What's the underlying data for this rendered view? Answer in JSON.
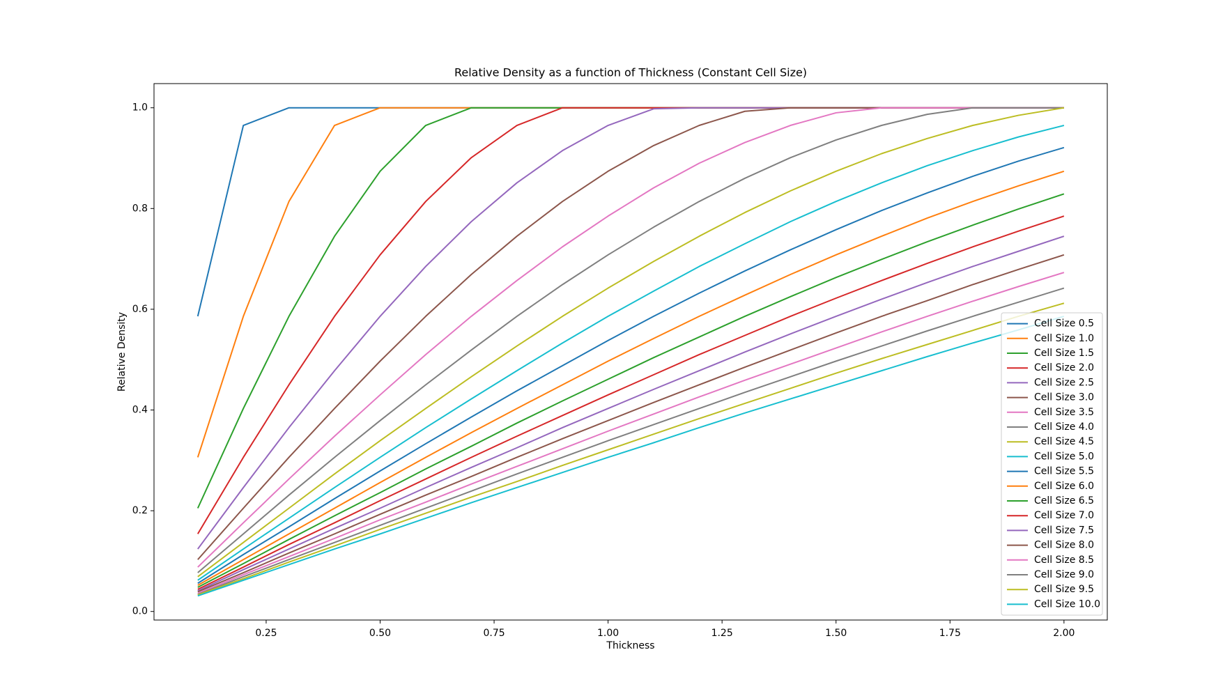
{
  "chart_data": {
    "type": "line",
    "title": "Relative Density as a function of Thickness (Constant Cell Size)",
    "x_label": "Thickness",
    "y_label": "Relative Density",
    "x": [
      0.1,
      0.2,
      0.3,
      0.4,
      0.5,
      0.6,
      0.7,
      0.8,
      0.9,
      1.0,
      1.1,
      1.2,
      1.3,
      1.4,
      1.5,
      1.6,
      1.7,
      1.8,
      1.9,
      2.0
    ],
    "xlim": [
      0.004,
      2.095
    ],
    "ylim": [
      -0.017,
      1.048
    ],
    "xticks": [
      0.25,
      {
        "value": 0.5,
        "label": "0.50"
      },
      0.75,
      {
        "value": 1.0,
        "label": "1.00"
      },
      1.25,
      {
        "value": 1.5,
        "label": "1.50"
      },
      1.75,
      {
        "value": 2.0,
        "label": "2.00"
      }
    ],
    "yticks": [
      {
        "value": 0,
        "label": "0.0"
      },
      0.2,
      0.4,
      0.6,
      0.8,
      {
        "value": 1.0,
        "label": "1.0"
      }
    ],
    "grid": false,
    "legend": "lower right",
    "series": [
      {
        "name": "Cell Size 0.5",
        "color": "#1f77b4",
        "values": [
          0.586,
          0.965,
          1,
          1,
          1,
          1,
          1,
          1,
          1,
          1,
          1,
          1,
          1,
          1,
          1,
          1,
          1,
          1,
          1,
          1
        ]
      },
      {
        "name": "Cell Size 1.0",
        "color": "#ff7f0e",
        "values": [
          0.306,
          0.586,
          0.814,
          0.965,
          1,
          1,
          1,
          1,
          1,
          1,
          1,
          1,
          1,
          1,
          1,
          1,
          1,
          1,
          1,
          1
        ]
      },
      {
        "name": "Cell Size 1.5",
        "color": "#2ca02c",
        "values": [
          0.205,
          0.403,
          0.586,
          0.745,
          0.874,
          0.965,
          1,
          1,
          1,
          1,
          1,
          1,
          1,
          1,
          1,
          1,
          1,
          1,
          1,
          1
        ]
      },
      {
        "name": "Cell Size 2.0",
        "color": "#d62728",
        "values": [
          0.154,
          0.306,
          0.45,
          0.586,
          0.708,
          0.814,
          0.901,
          0.965,
          1,
          1,
          1,
          1,
          1,
          1,
          1,
          1,
          1,
          1,
          1,
          1
        ]
      },
      {
        "name": "Cell Size 2.5",
        "color": "#9467bd",
        "values": [
          0.124,
          0.246,
          0.365,
          0.478,
          0.586,
          0.685,
          0.774,
          0.851,
          0.915,
          0.965,
          0.998,
          1,
          1,
          1,
          1,
          1,
          1,
          1,
          1,
          1
        ]
      },
      {
        "name": "Cell Size 3.0",
        "color": "#8c564b",
        "values": [
          0.103,
          0.205,
          0.306,
          0.403,
          0.497,
          0.586,
          0.669,
          0.745,
          0.814,
          0.874,
          0.925,
          0.965,
          0.993,
          1,
          1,
          1,
          1,
          1,
          1,
          1
        ]
      },
      {
        "name": "Cell Size 3.5",
        "color": "#e377c2",
        "values": [
          0.088,
          0.176,
          0.263,
          0.348,
          0.43,
          0.51,
          0.586,
          0.657,
          0.724,
          0.785,
          0.841,
          0.89,
          0.931,
          0.965,
          0.99,
          1,
          1,
          1,
          1,
          1
        ]
      },
      {
        "name": "Cell Size 4.0",
        "color": "#7f7f7f",
        "values": [
          0.077,
          0.154,
          0.231,
          0.306,
          0.379,
          0.45,
          0.519,
          0.586,
          0.649,
          0.708,
          0.763,
          0.814,
          0.86,
          0.901,
          0.936,
          0.965,
          0.987,
          1,
          1,
          1
        ]
      },
      {
        "name": "Cell Size 4.5",
        "color": "#bcbd22",
        "values": [
          0.069,
          0.137,
          0.205,
          0.273,
          0.339,
          0.403,
          0.466,
          0.527,
          0.586,
          0.642,
          0.695,
          0.745,
          0.792,
          0.835,
          0.874,
          0.909,
          0.939,
          0.965,
          0.985,
          1
        ]
      },
      {
        "name": "Cell Size 5.0",
        "color": "#17becf",
        "values": [
          0.062,
          0.124,
          0.185,
          0.246,
          0.306,
          0.365,
          0.422,
          0.478,
          0.533,
          0.586,
          0.636,
          0.685,
          0.73,
          0.774,
          0.814,
          0.851,
          0.885,
          0.915,
          0.942,
          0.965
        ]
      },
      {
        "name": "Cell Size 5.5",
        "color": "#1f77b4",
        "values": [
          0.056,
          0.113,
          0.168,
          0.224,
          0.279,
          0.333,
          0.386,
          0.438,
          0.488,
          0.538,
          0.586,
          0.632,
          0.676,
          0.718,
          0.758,
          0.796,
          0.831,
          0.864,
          0.894,
          0.921
        ]
      },
      {
        "name": "Cell Size 6.0",
        "color": "#ff7f0e",
        "values": [
          0.052,
          0.103,
          0.154,
          0.205,
          0.256,
          0.306,
          0.355,
          0.403,
          0.45,
          0.497,
          0.542,
          0.586,
          0.628,
          0.669,
          0.708,
          0.745,
          0.781,
          0.814,
          0.845,
          0.874
        ]
      },
      {
        "name": "Cell Size 6.5",
        "color": "#2ca02c",
        "values": [
          0.048,
          0.095,
          0.143,
          0.19,
          0.236,
          0.283,
          0.328,
          0.374,
          0.418,
          0.461,
          0.504,
          0.545,
          0.586,
          0.625,
          0.663,
          0.699,
          0.734,
          0.767,
          0.799,
          0.829
        ]
      },
      {
        "name": "Cell Size 7.0",
        "color": "#d62728",
        "values": [
          0.044,
          0.088,
          0.133,
          0.176,
          0.22,
          0.263,
          0.306,
          0.348,
          0.389,
          0.43,
          0.47,
          0.51,
          0.548,
          0.586,
          0.622,
          0.657,
          0.691,
          0.724,
          0.755,
          0.785
        ]
      },
      {
        "name": "Cell Size 7.5",
        "color": "#9467bd",
        "values": [
          0.041,
          0.083,
          0.124,
          0.165,
          0.205,
          0.246,
          0.286,
          0.325,
          0.365,
          0.403,
          0.441,
          0.478,
          0.515,
          0.551,
          0.586,
          0.62,
          0.653,
          0.685,
          0.715,
          0.745
        ]
      },
      {
        "name": "Cell Size 8.0",
        "color": "#8c564b",
        "values": [
          0.039,
          0.077,
          0.116,
          0.154,
          0.193,
          0.231,
          0.268,
          0.306,
          0.343,
          0.379,
          0.415,
          0.45,
          0.485,
          0.519,
          0.553,
          0.586,
          0.617,
          0.649,
          0.679,
          0.708
        ]
      },
      {
        "name": "Cell Size 8.5",
        "color": "#e377c2",
        "values": [
          0.036,
          0.073,
          0.109,
          0.145,
          0.182,
          0.217,
          0.253,
          0.288,
          0.323,
          0.358,
          0.392,
          0.426,
          0.459,
          0.491,
          0.523,
          0.555,
          0.586,
          0.616,
          0.645,
          0.673
        ]
      },
      {
        "name": "Cell Size 9.0",
        "color": "#7f7f7f",
        "values": [
          0.034,
          0.069,
          0.103,
          0.137,
          0.171,
          0.205,
          0.239,
          0.273,
          0.306,
          0.339,
          0.371,
          0.403,
          0.435,
          0.466,
          0.497,
          0.527,
          0.557,
          0.586,
          0.614,
          0.642
        ]
      },
      {
        "name": "Cell Size 9.5",
        "color": "#bcbd22",
        "values": [
          0.033,
          0.065,
          0.098,
          0.13,
          0.163,
          0.195,
          0.227,
          0.258,
          0.29,
          0.321,
          0.352,
          0.383,
          0.413,
          0.443,
          0.473,
          0.502,
          0.53,
          0.558,
          0.586,
          0.612
        ]
      },
      {
        "name": "Cell Size 10.0",
        "color": "#17becf",
        "values": [
          0.031,
          0.062,
          0.093,
          0.124,
          0.154,
          0.185,
          0.216,
          0.246,
          0.276,
          0.306,
          0.335,
          0.365,
          0.394,
          0.422,
          0.45,
          0.478,
          0.506,
          0.533,
          0.559,
          0.586
        ]
      }
    ]
  }
}
